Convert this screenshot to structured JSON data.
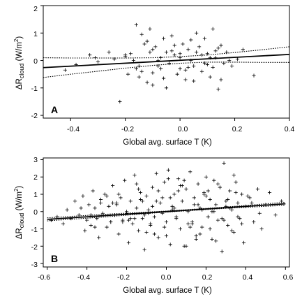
{
  "chart_data": [
    {
      "type": "scatter",
      "panel_label": "A",
      "xlabel": "Global avg. surface T (K)",
      "ylabel_main": "ΔR",
      "ylabel_sub": "cloud",
      "ylabel_units_open": " (W/m",
      "ylabel_units_sup": "2",
      "ylabel_units_close": ")",
      "xlim": [
        -0.5,
        0.4
      ],
      "ylim": [
        -2.1,
        2.0
      ],
      "xticks": [
        -0.4,
        -0.2,
        0.0,
        0.2,
        0.4
      ],
      "xtick_labels": [
        "-0.4",
        "-0.2",
        "0.0",
        "0.2",
        "0.4"
      ],
      "yticks": [
        -2,
        -1,
        0,
        1,
        2
      ],
      "ytick_labels": [
        "-2",
        "-1",
        "0",
        "1",
        "2"
      ],
      "fit": {
        "x": [
          -0.5,
          0.4
        ],
        "y": [
          -0.26,
          0.22
        ]
      },
      "ci_upper": {
        "x": [
          -0.5,
          -0.4,
          -0.3,
          -0.2,
          -0.1,
          0.0,
          0.1,
          0.2,
          0.3,
          0.4
        ],
        "y": [
          0.1,
          0.09,
          0.09,
          0.09,
          0.1,
          0.14,
          0.2,
          0.29,
          0.39,
          0.5
        ]
      },
      "ci_lower": {
        "x": [
          -0.5,
          -0.4,
          -0.3,
          -0.2,
          -0.1,
          0.0,
          0.1,
          0.2,
          0.3,
          0.4
        ],
        "y": [
          -0.62,
          -0.5,
          -0.39,
          -0.28,
          -0.18,
          -0.1,
          -0.06,
          -0.06,
          -0.07,
          -0.07
        ]
      },
      "points": {
        "x": [
          -0.42,
          -0.38,
          -0.33,
          -0.31,
          -0.26,
          -0.24,
          -0.22,
          -0.2,
          -0.19,
          -0.18,
          -0.17,
          -0.16,
          -0.15,
          -0.15,
          -0.14,
          -0.13,
          -0.12,
          -0.11,
          -0.1,
          -0.1,
          -0.09,
          -0.08,
          -0.07,
          -0.06,
          -0.05,
          -0.05,
          -0.04,
          -0.03,
          -0.02,
          -0.01,
          0.0,
          0.0,
          0.01,
          0.02,
          0.03,
          0.04,
          0.05,
          0.06,
          0.07,
          0.08,
          0.09,
          0.1,
          0.11,
          0.12,
          0.13,
          0.14,
          0.15,
          0.16,
          0.17,
          0.19,
          0.21,
          0.23,
          0.27,
          -0.3,
          -0.2,
          -0.12,
          -0.08,
          -0.03,
          0.02,
          0.06,
          0.1,
          0.14,
          0.18,
          -0.14,
          -0.06,
          0.04,
          0.08,
          0.12,
          -0.1,
          0.0,
          0.05,
          0.11,
          -0.16,
          -0.02,
          0.09,
          0.15,
          -0.07,
          0.03,
          0.13,
          -0.11
        ],
        "y": [
          -0.35,
          -0.15,
          0.2,
          0.1,
          0.3,
          0.05,
          -1.5,
          0.2,
          -0.5,
          0.25,
          0.0,
          1.3,
          -0.2,
          -0.6,
          -0.4,
          0.6,
          -0.8,
          1.15,
          0.4,
          -0.9,
          0.5,
          0.0,
          -0.3,
          0.8,
          -1.0,
          0.3,
          -0.1,
          0.9,
          0.2,
          -0.5,
          0.1,
          -0.3,
          0.6,
          -0.7,
          0.4,
          0.0,
          -0.2,
          1.0,
          0.5,
          -0.4,
          0.8,
          0.25,
          -0.6,
          1.15,
          0.1,
          -1.05,
          0.55,
          -0.1,
          0.3,
          -0.2,
          0.05,
          0.4,
          -0.55,
          -0.05,
          0.15,
          0.7,
          -0.2,
          0.35,
          -0.35,
          0.3,
          -0.15,
          0.45,
          0.0,
          0.95,
          -0.65,
          0.75,
          0.2,
          -0.25,
          -0.45,
          0.25,
          -0.75,
          0.1,
          -0.3,
          0.55,
          -0.1,
          -0.7,
          0.1,
          -0.25,
          0.35,
          0.3
        ]
      }
    },
    {
      "type": "scatter",
      "panel_label": "B",
      "xlabel": "Global avg. surface T (K)",
      "ylabel_main": "ΔR",
      "ylabel_sub": "cloud",
      "ylabel_units_open": " (W/m",
      "ylabel_units_sup": "2",
      "ylabel_units_close": ")",
      "xlim": [
        -0.62,
        0.62
      ],
      "ylim": [
        -3.2,
        3.1
      ],
      "xticks": [
        -0.6,
        -0.4,
        -0.2,
        0.0,
        0.2,
        0.4,
        0.6
      ],
      "xtick_labels": [
        "-0.6",
        "-0.4",
        "-0.2",
        "0.0",
        "0.2",
        "0.4",
        "0.6"
      ],
      "yticks": [
        -3,
        -2,
        -1,
        0,
        1,
        2,
        3
      ],
      "ytick_labels": [
        "-3",
        "-2",
        "-1",
        "0",
        "1",
        "2",
        "3"
      ],
      "fit": {
        "x": [
          -0.6,
          0.6
        ],
        "y": [
          -0.45,
          0.45
        ]
      },
      "ci_upper": {
        "x": [
          -0.6,
          -0.3,
          0.0,
          0.3,
          0.6
        ],
        "y": [
          -0.36,
          -0.15,
          0.03,
          0.26,
          0.54
        ]
      },
      "ci_lower": {
        "x": [
          -0.6,
          -0.3,
          0.0,
          0.3,
          0.6
        ],
        "y": [
          -0.54,
          -0.3,
          -0.03,
          0.19,
          0.36
        ]
      },
      "points": {
        "x": [
          -0.58,
          -0.55,
          -0.52,
          -0.5,
          -0.48,
          -0.46,
          -0.44,
          -0.42,
          -0.41,
          -0.4,
          -0.39,
          -0.38,
          -0.37,
          -0.36,
          -0.35,
          -0.34,
          -0.33,
          -0.32,
          -0.31,
          -0.3,
          -0.29,
          -0.28,
          -0.27,
          -0.26,
          -0.25,
          -0.24,
          -0.23,
          -0.22,
          -0.21,
          -0.2,
          -0.19,
          -0.18,
          -0.17,
          -0.16,
          -0.15,
          -0.14,
          -0.13,
          -0.12,
          -0.11,
          -0.1,
          -0.09,
          -0.08,
          -0.07,
          -0.06,
          -0.05,
          -0.04,
          -0.03,
          -0.02,
          -0.01,
          0.0,
          0.01,
          0.02,
          0.03,
          0.04,
          0.05,
          0.06,
          0.07,
          0.08,
          0.09,
          0.1,
          0.11,
          0.12,
          0.13,
          0.14,
          0.15,
          0.16,
          0.17,
          0.18,
          0.19,
          0.2,
          0.21,
          0.22,
          0.23,
          0.24,
          0.25,
          0.26,
          0.27,
          0.28,
          0.29,
          0.3,
          0.31,
          0.32,
          0.33,
          0.34,
          0.35,
          0.36,
          0.37,
          0.38,
          0.39,
          0.4,
          0.42,
          0.44,
          0.46,
          0.48,
          0.5,
          0.52,
          0.55,
          0.58,
          -0.43,
          -0.38,
          -0.33,
          -0.28,
          -0.24,
          -0.2,
          -0.16,
          -0.13,
          -0.1,
          -0.07,
          -0.04,
          -0.01,
          0.02,
          0.05,
          0.08,
          0.11,
          0.14,
          0.17,
          0.2,
          0.23,
          0.26,
          0.29,
          0.32,
          0.35,
          0.38,
          0.43,
          0.47,
          -0.36,
          -0.3,
          -0.25,
          -0.19,
          -0.14,
          -0.09,
          -0.05,
          0.0,
          0.04,
          0.09,
          0.13,
          0.18,
          0.22,
          0.27,
          0.31,
          0.36,
          0.41,
          -0.27,
          -0.22,
          -0.15,
          -0.11,
          -0.06,
          -0.02,
          0.03,
          0.07,
          0.12,
          0.16,
          0.21,
          0.25,
          0.3,
          0.34,
          -0.18,
          -0.08,
          0.06,
          0.15,
          0.24,
          0.33,
          -0.12,
          0.01,
          0.1,
          0.19,
          0.28
        ],
        "y": [
          -0.5,
          -0.3,
          -0.7,
          0.1,
          -0.4,
          0.6,
          -0.2,
          0.9,
          -1.1,
          -0.5,
          0.4,
          -0.8,
          1.2,
          0.2,
          -0.4,
          -1.5,
          0.7,
          -0.1,
          1.0,
          -0.9,
          0.3,
          -0.6,
          1.5,
          -0.2,
          0.5,
          -1.3,
          0.8,
          -0.5,
          1.8,
          -0.1,
          -1.8,
          0.6,
          -0.7,
          2.1,
          0.2,
          -1.1,
          1.1,
          -0.4,
          -2.2,
          0.9,
          0.1,
          -0.8,
          1.4,
          -0.3,
          2.2,
          -1.5,
          0.5,
          -0.1,
          1.7,
          -0.6,
          2.4,
          -1.9,
          0.3,
          1.0,
          -0.4,
          1.9,
          -1.0,
          0.6,
          -2.0,
          1.3,
          0.0,
          2.3,
          -0.7,
          0.8,
          -1.4,
          1.6,
          0.2,
          -0.9,
          1.1,
          2.0,
          -0.3,
          0.7,
          -1.6,
          1.8,
          0.4,
          -0.5,
          1.4,
          -2.3,
          2.8,
          0.6,
          -0.8,
          1.2,
          0.1,
          -1.2,
          1.7,
          0.5,
          -0.4,
          1.0,
          -1.8,
          0.3,
          0.8,
          -0.6,
          1.3,
          -1.0,
          0.4,
          1.1,
          -0.2,
          0.6,
          0.2,
          -0.2,
          0.5,
          -0.6,
          1.0,
          0.0,
          -0.4,
          0.7,
          -1.2,
          0.3,
          1.2,
          -0.9,
          0.8,
          -0.3,
          1.5,
          -0.7,
          0.4,
          -1.3,
          0.9,
          0.0,
          1.6,
          -0.5,
          0.2,
          1.1,
          -0.7,
          0.5,
          -0.1,
          -0.9,
          0.9,
          0.4,
          -0.5,
          1.3,
          -0.1,
          0.6,
          -1.4,
          0.2,
          1.8,
          -0.6,
          0.1,
          -1.0,
          1.4,
          0.7,
          -0.3,
          0.9,
          0.5,
          -0.6,
          1.6,
          -0.2,
          -1.3,
          0.8,
          0.1,
          1.5,
          -0.9,
          0.4,
          1.2,
          -1.7,
          0.3,
          2.1,
          -0.4,
          -0.7,
          1.2,
          -1.6,
          0.0,
          -1.1,
          0.6,
          1.9,
          -2.0,
          1.0,
          -0.4
        ]
      }
    }
  ]
}
